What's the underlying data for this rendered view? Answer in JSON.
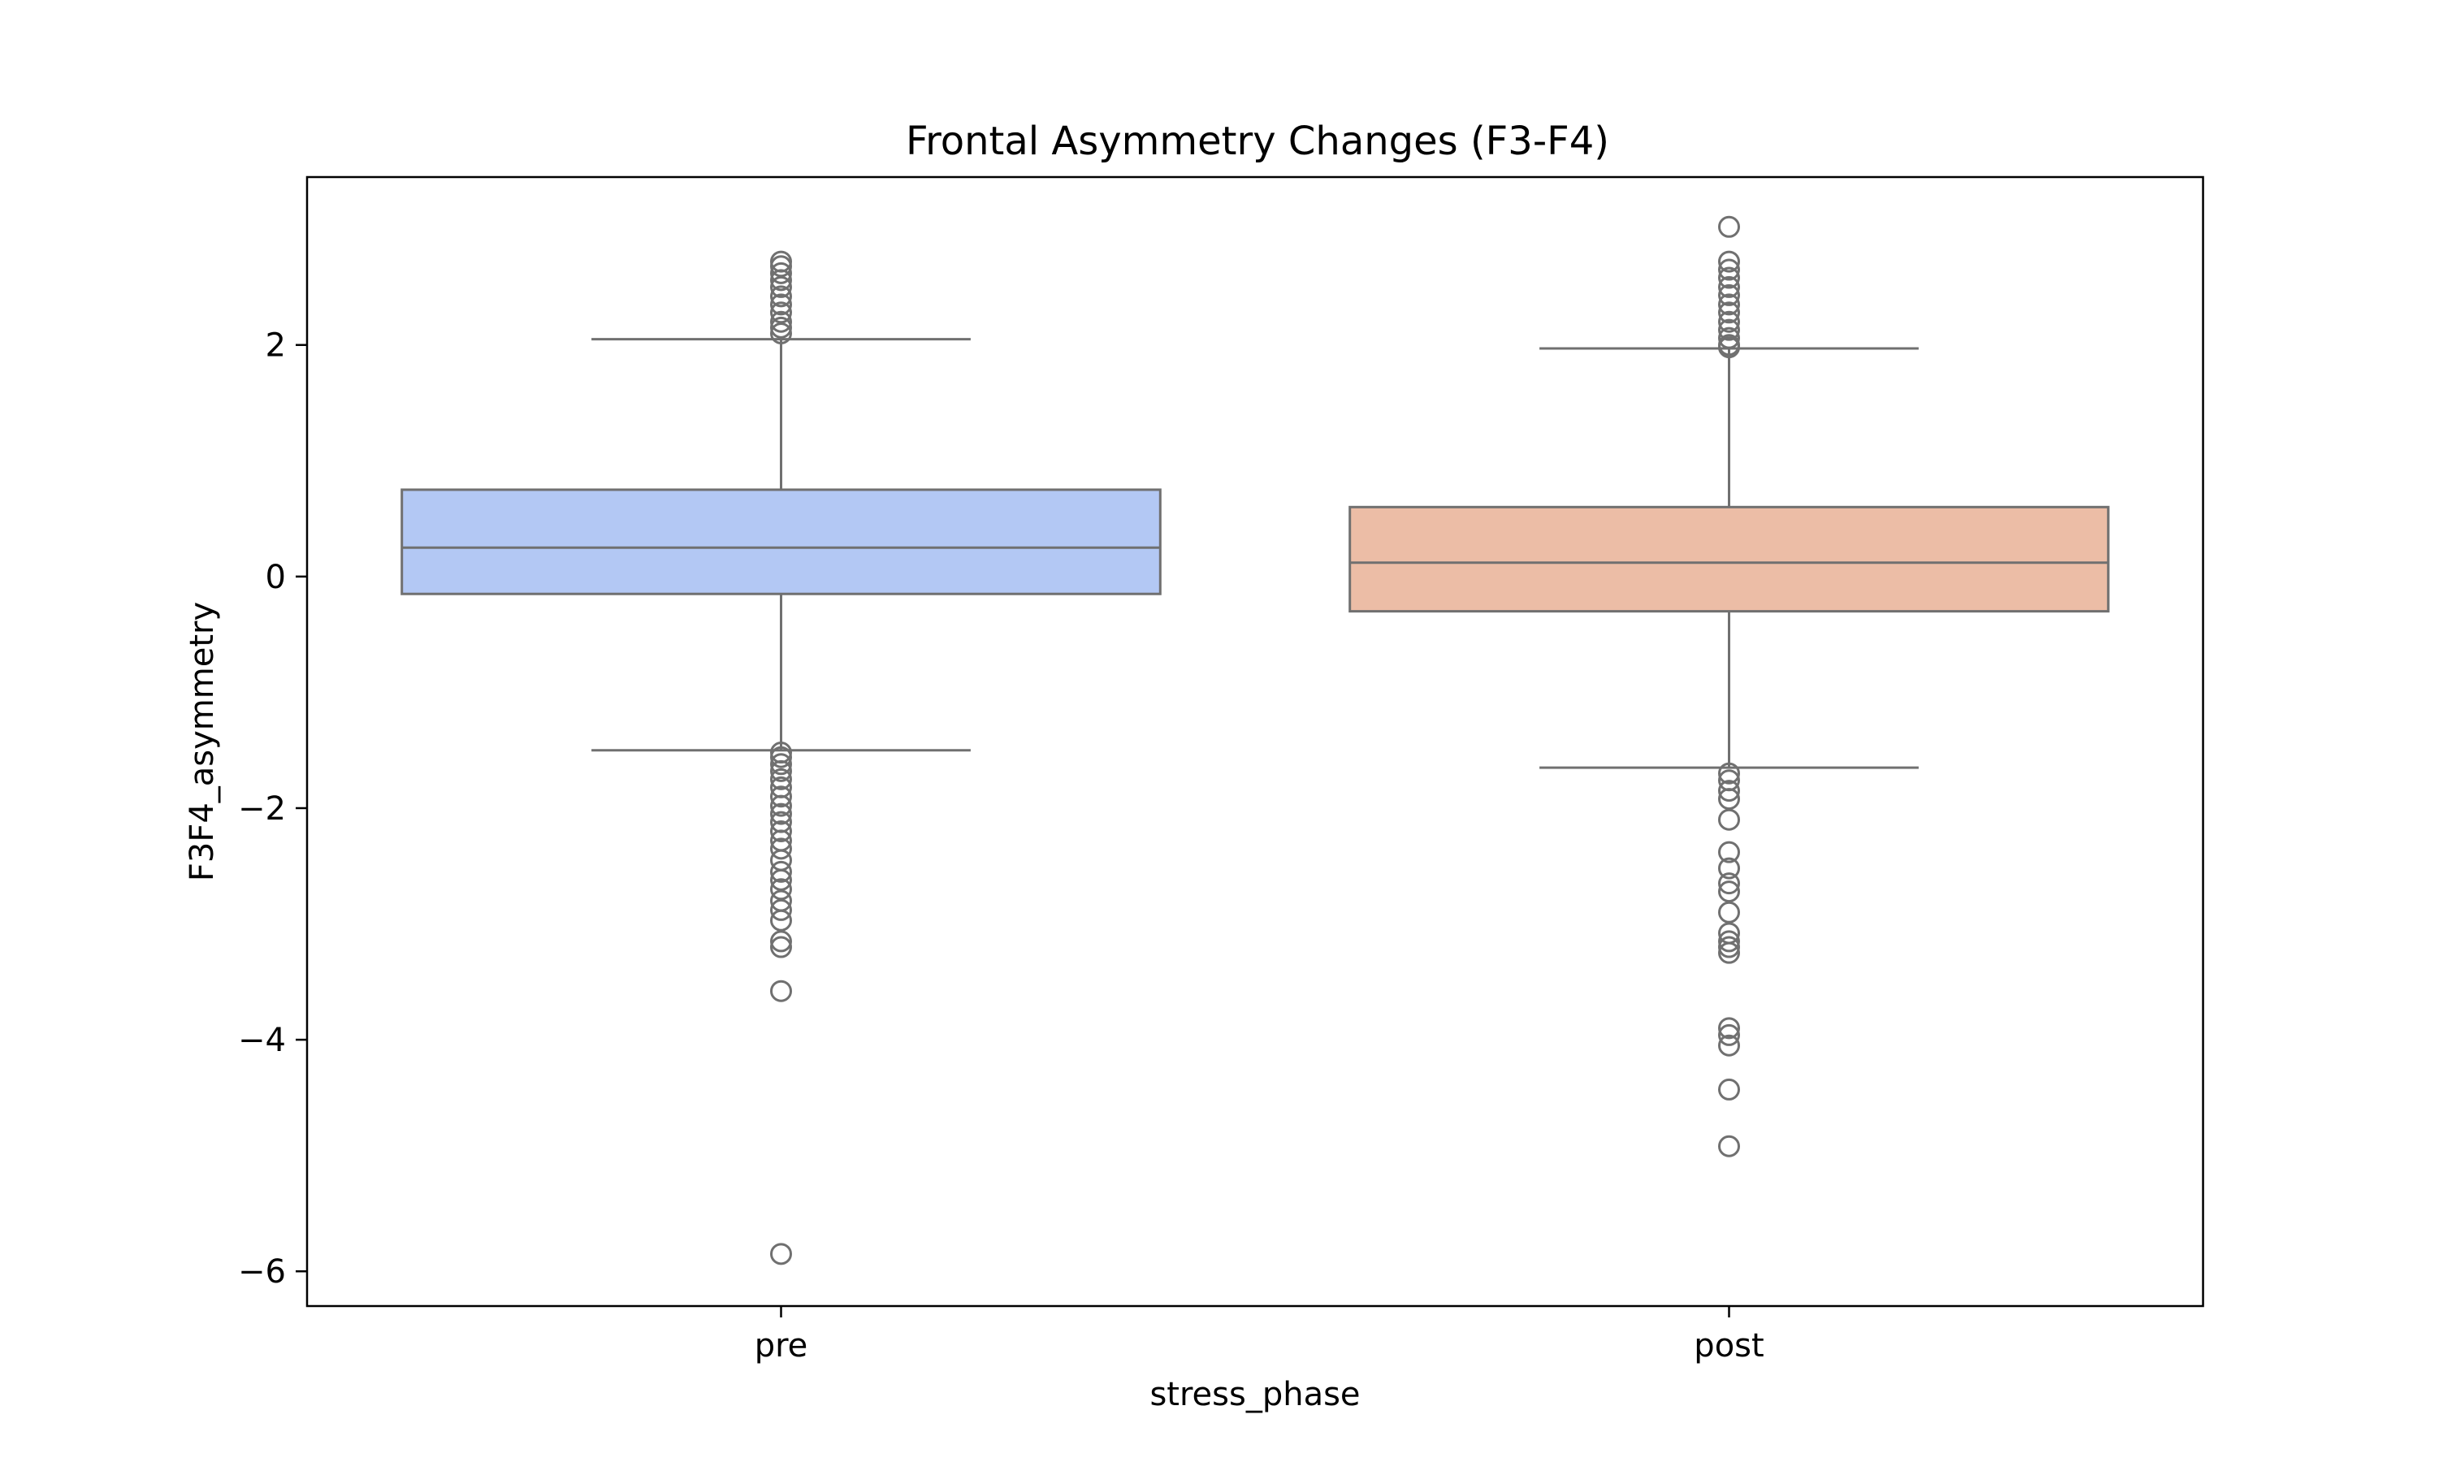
{
  "chart_data": {
    "type": "box",
    "title": "Frontal Asymmetry Changes (F3-F4)",
    "xlabel": "stress_phase",
    "ylabel": "F3F4_asymmetry",
    "ylim": [
      -6.3,
      3.45
    ],
    "yticks": [
      2,
      0,
      -2,
      -4,
      -6
    ],
    "ytick_labels": [
      "2",
      "0",
      "−2",
      "−4",
      "−6"
    ],
    "categories": [
      "pre",
      "post"
    ],
    "series": [
      {
        "category": "pre",
        "color": "#b3c8f4",
        "q1": -0.15,
        "median": 0.25,
        "q3": 0.75,
        "whisker_low": -1.5,
        "whisker_high": 2.05,
        "outliers": [
          2.1,
          2.15,
          2.2,
          2.28,
          2.35,
          2.42,
          2.5,
          2.56,
          2.62,
          2.68,
          2.72,
          -1.52,
          -1.56,
          -1.62,
          -1.68,
          -1.75,
          -1.82,
          -1.9,
          -1.98,
          -2.05,
          -2.12,
          -2.2,
          -2.28,
          -2.35,
          -2.45,
          -2.55,
          -2.62,
          -2.7,
          -2.8,
          -2.88,
          -2.97,
          -3.15,
          -3.2,
          -3.58,
          -5.85
        ]
      },
      {
        "category": "post",
        "color": "#ecbda6",
        "q1": -0.3,
        "median": 0.12,
        "q3": 0.6,
        "whisker_low": -1.65,
        "whisker_high": 1.97,
        "outliers": [
          3.02,
          2.72,
          2.65,
          2.58,
          2.5,
          2.43,
          2.35,
          2.28,
          2.2,
          2.13,
          2.06,
          2.0,
          1.98,
          -1.7,
          -1.76,
          -1.85,
          -1.92,
          -2.1,
          -2.38,
          -2.52,
          -2.65,
          -2.72,
          -2.9,
          -3.08,
          -3.15,
          -3.2,
          -3.25,
          -3.9,
          -3.96,
          -4.05,
          -4.43,
          -4.92
        ]
      }
    ],
    "grid": false,
    "legend": "none"
  }
}
